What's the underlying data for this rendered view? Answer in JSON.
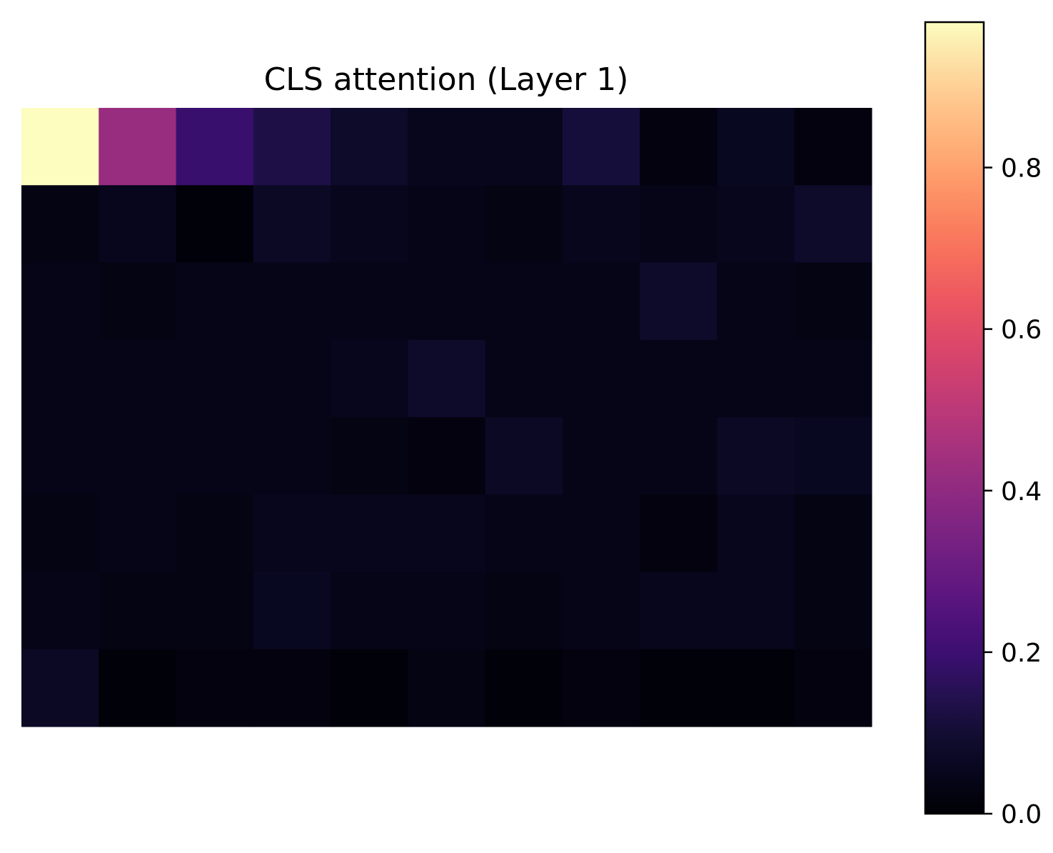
{
  "chart_data": {
    "type": "heatmap",
    "title": "CLS attention (Layer 1)",
    "rows": 8,
    "cols": 11,
    "colormap": "magma",
    "vmin": 0.0,
    "vmax": 0.98,
    "axes_visible": false,
    "values": [
      [
        0.98,
        0.42,
        0.19,
        0.13,
        0.08,
        0.05,
        0.05,
        0.11,
        0.02,
        0.06,
        0.02
      ],
      [
        0.03,
        0.05,
        0.01,
        0.07,
        0.05,
        0.04,
        0.03,
        0.05,
        0.04,
        0.05,
        0.08
      ],
      [
        0.04,
        0.03,
        0.04,
        0.04,
        0.04,
        0.04,
        0.04,
        0.04,
        0.08,
        0.04,
        0.03
      ],
      [
        0.04,
        0.04,
        0.04,
        0.04,
        0.05,
        0.08,
        0.04,
        0.04,
        0.04,
        0.04,
        0.04
      ],
      [
        0.04,
        0.04,
        0.04,
        0.04,
        0.03,
        0.02,
        0.07,
        0.04,
        0.04,
        0.07,
        0.06
      ],
      [
        0.03,
        0.04,
        0.03,
        0.05,
        0.05,
        0.05,
        0.04,
        0.04,
        0.02,
        0.05,
        0.03
      ],
      [
        0.04,
        0.03,
        0.03,
        0.06,
        0.04,
        0.04,
        0.03,
        0.04,
        0.05,
        0.05,
        0.03
      ],
      [
        0.07,
        0.01,
        0.02,
        0.02,
        0.01,
        0.03,
        0.01,
        0.02,
        0.01,
        0.01,
        0.02
      ]
    ],
    "colorbar": {
      "ticks": [
        0.0,
        0.2,
        0.4,
        0.6,
        0.8
      ],
      "tick_labels": [
        "0.0",
        "0.2",
        "0.4",
        "0.6",
        "0.8"
      ]
    }
  }
}
